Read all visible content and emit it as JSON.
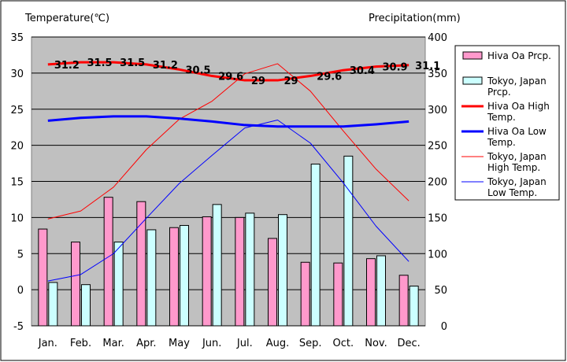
{
  "chart_data": {
    "type": "bar",
    "title": "",
    "ylabel": "Temperature(℃)",
    "y2label": "Precipitation(mm)",
    "ylim": [
      -5,
      35
    ],
    "y2lim": [
      0,
      400
    ],
    "yticks": [
      "-5",
      "0",
      "5",
      "10",
      "15",
      "20",
      "25",
      "30",
      "35"
    ],
    "y2ticks": [
      "0",
      "50",
      "100",
      "150",
      "200",
      "250",
      "300",
      "350",
      "400"
    ],
    "categories": [
      "Jan.",
      "Feb.",
      "Mar.",
      "Apr.",
      "May",
      "Jun.",
      "Jul.",
      "Aug.",
      "Sep.",
      "Oct.",
      "Nov.",
      "Dec."
    ],
    "grid": true,
    "legend_position": "right",
    "bar_series": [
      {
        "name": "Hiva Oa Prcp.",
        "axis": "right",
        "color": "#ff99cc",
        "values": [
          134,
          116,
          178,
          172,
          136,
          151,
          150,
          121,
          88,
          87,
          93,
          70
        ]
      },
      {
        "name": "Tokyo, Japan Prcp.",
        "axis": "right",
        "color": "#ccffff",
        "values": [
          60,
          57,
          116,
          133,
          139,
          168,
          156,
          154,
          224,
          235,
          97,
          55
        ]
      }
    ],
    "line_series": [
      {
        "name": "Hiva Oa High Temp.",
        "axis": "left",
        "color": "#ff0000",
        "width": 3,
        "values": [
          31.2,
          31.5,
          31.5,
          31.2,
          30.5,
          29.6,
          29,
          29,
          29.6,
          30.4,
          30.9,
          31.1
        ],
        "labels": [
          "31.2",
          "31.5",
          "31.5",
          "31.2",
          "30.5",
          "29.6",
          "29",
          "29",
          "29.6",
          "30.4",
          "30.9",
          "31.1"
        ]
      },
      {
        "name": "Hiva Oa Low Temp.",
        "axis": "left",
        "color": "#0000ff",
        "width": 3,
        "values": [
          23.4,
          23.8,
          24.0,
          24.0,
          23.7,
          23.3,
          22.8,
          22.6,
          22.6,
          22.6,
          22.9,
          23.3
        ]
      },
      {
        "name": "Tokyo, Japan High Temp.",
        "axis": "left",
        "color": "#ff0000",
        "width": 1,
        "values": [
          9.8,
          10.9,
          14.2,
          19.4,
          23.6,
          26.1,
          29.9,
          31.3,
          27.5,
          22.0,
          16.7,
          12.3
        ]
      },
      {
        "name": "Tokyo, Japan Low Temp.",
        "axis": "left",
        "color": "#0000ff",
        "width": 1,
        "values": [
          1.2,
          2.1,
          5.0,
          9.9,
          14.7,
          18.6,
          22.4,
          23.5,
          20.3,
          14.8,
          8.8,
          3.9
        ]
      }
    ]
  }
}
